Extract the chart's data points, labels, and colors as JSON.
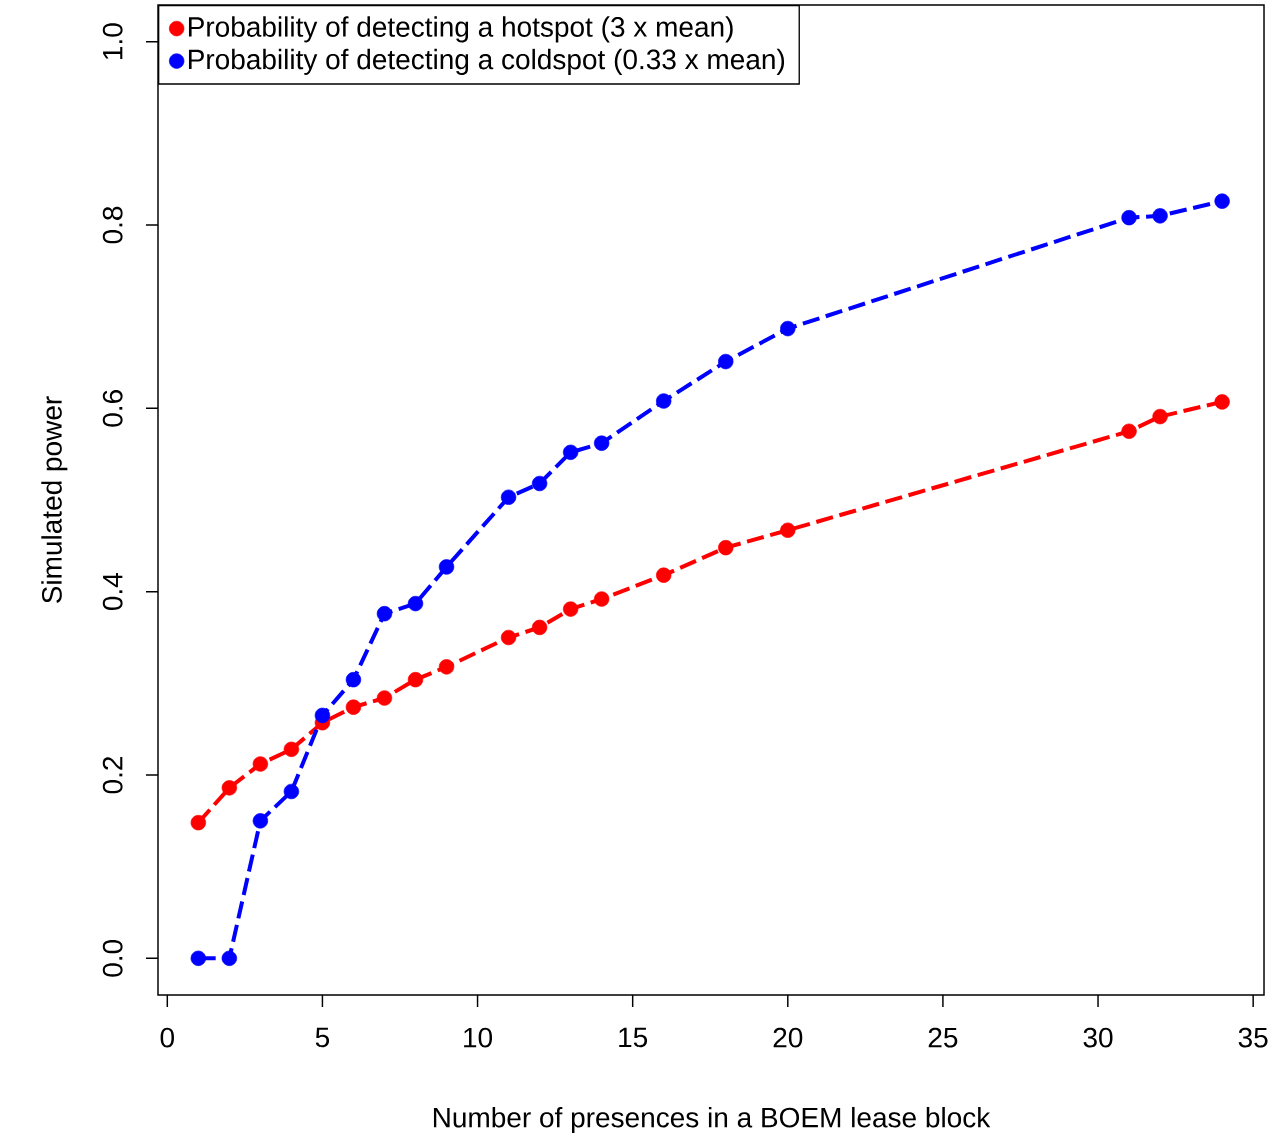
{
  "chart_data": {
    "type": "line",
    "xlabel": "Number of presences in a BOEM lease block",
    "ylabel": "Simulated power",
    "x": [
      1,
      2,
      3,
      4,
      5,
      6,
      7,
      8,
      9,
      11,
      12,
      13,
      14,
      16,
      18,
      20,
      31,
      32,
      34
    ],
    "series": [
      {
        "name": "Probability of detecting a hotspot (3 x mean)",
        "color": "#ff0000",
        "values": [
          0.148,
          0.186,
          0.212,
          0.228,
          0.257,
          0.274,
          0.284,
          0.304,
          0.318,
          0.35,
          0.361,
          0.381,
          0.392,
          0.418,
          0.448,
          0.467,
          0.575,
          0.591,
          0.607
        ]
      },
      {
        "name": "Probability of detecting a coldspot (0.33 x mean)",
        "color": "#0000ff",
        "values": [
          0.0,
          0.0,
          0.15,
          0.182,
          0.265,
          0.304,
          0.376,
          0.387,
          0.427,
          0.503,
          0.518,
          0.552,
          0.562,
          0.608,
          0.651,
          0.687,
          0.808,
          0.81,
          0.826
        ]
      }
    ],
    "xlim": [
      -0.3,
      35.35
    ],
    "ylim": [
      -0.04,
      1.04
    ],
    "xticks": [
      0,
      5,
      10,
      15,
      20,
      25,
      30,
      35
    ],
    "yticks": [
      {
        "value": 0,
        "label": "0.0"
      },
      {
        "value": 0.2,
        "label": "0.2"
      },
      {
        "value": 0.4,
        "label": "0.4"
      },
      {
        "value": 0.6,
        "label": "0.6"
      },
      {
        "value": 0.8,
        "label": "0.8"
      },
      {
        "value": 1.0,
        "label": "1.0"
      }
    ],
    "legend": "top left",
    "marker": "circle",
    "line_style": "dashed"
  }
}
